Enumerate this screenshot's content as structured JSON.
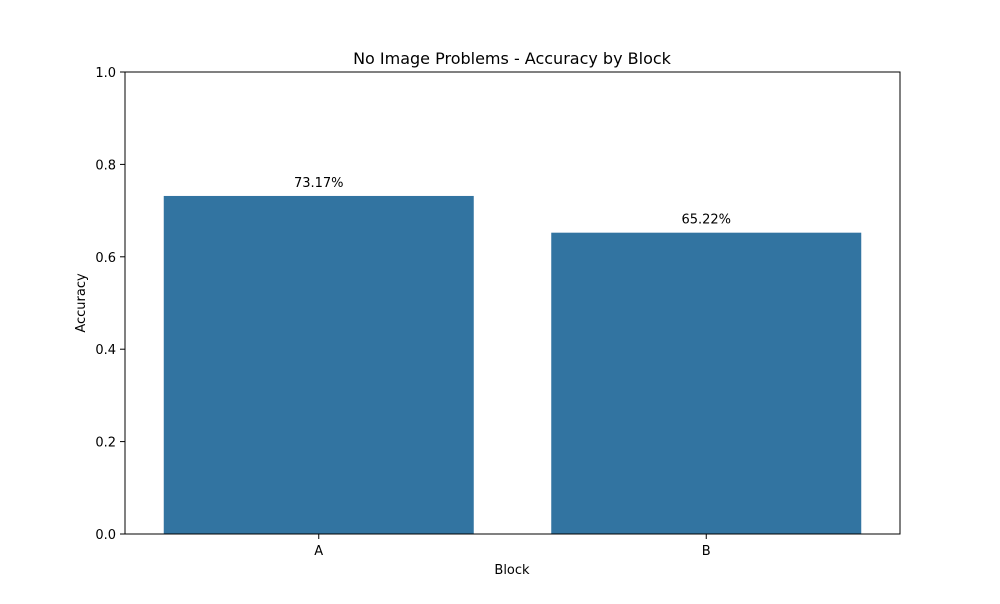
{
  "chart_data": {
    "type": "bar",
    "title": "No Image Problems - Accuracy by Block",
    "xlabel": "Block",
    "ylabel": "Accuracy",
    "categories": [
      "A",
      "B"
    ],
    "values": [
      0.7317,
      0.6522
    ],
    "data_labels": [
      "73.17%",
      "65.22%"
    ],
    "ylim": [
      0,
      1.0
    ],
    "y_ticks": [
      0.0,
      0.2,
      0.4,
      0.6,
      0.8,
      1.0
    ],
    "y_tick_labels": [
      "0.0",
      "0.2",
      "0.4",
      "0.6",
      "0.8",
      "1.0"
    ],
    "grid": false,
    "legend": "none",
    "bar_color": "#3274a1"
  }
}
